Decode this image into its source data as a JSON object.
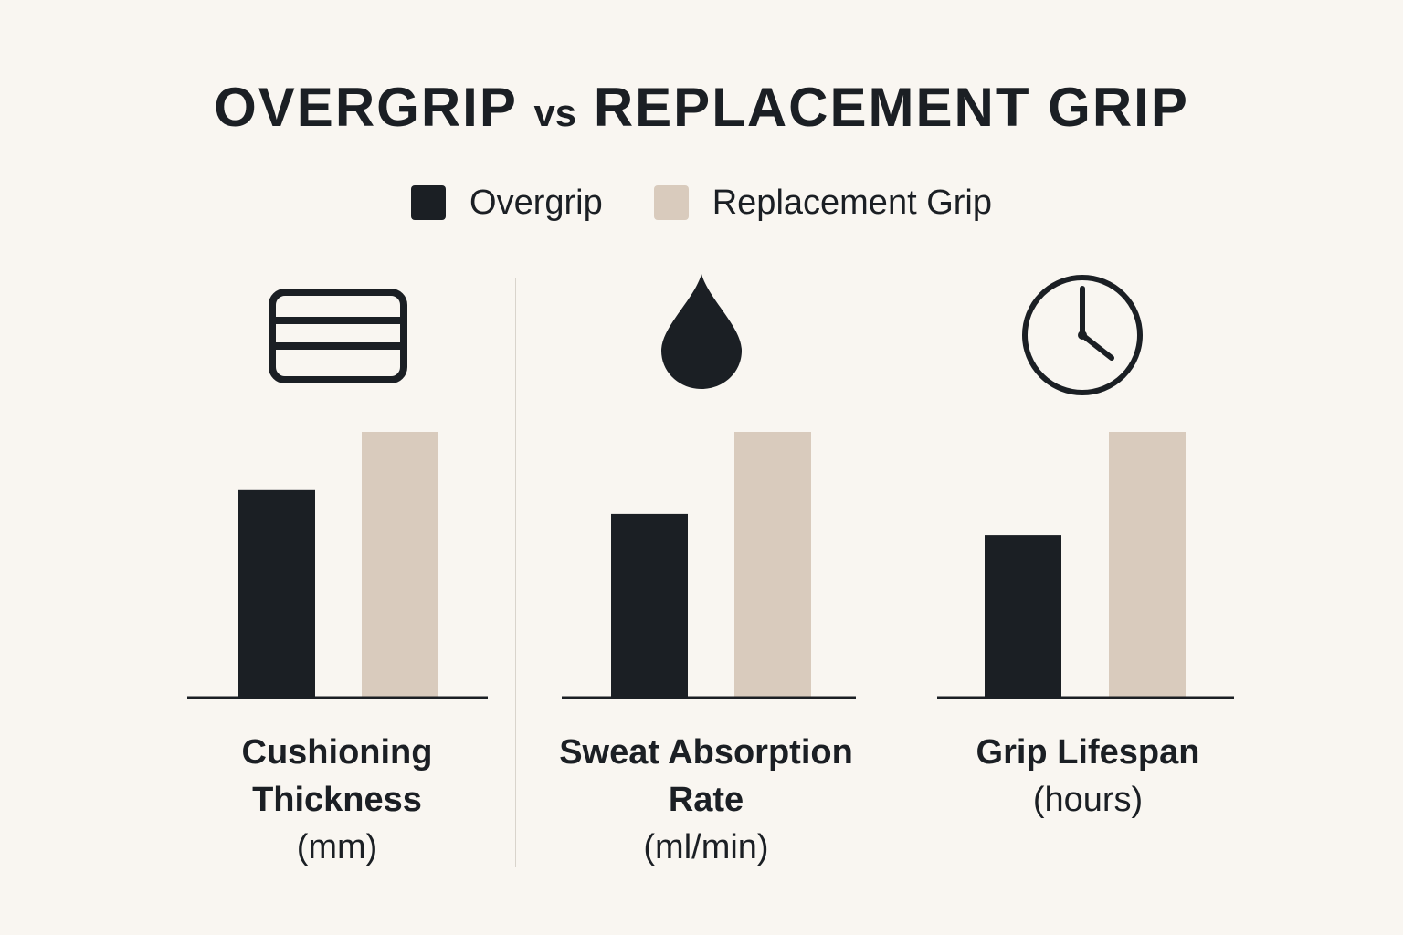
{
  "title_main": "OVERGRIP",
  "title_vs": "vs",
  "title_end": "REPLACEMENT GRIP",
  "colors": {
    "overgrip": "#1b1f24",
    "replacement": "#d9cbbd",
    "background": "#f9f6f1"
  },
  "chart_data": {
    "type": "bar",
    "title": "OVERGRIP vs REPLACEMENT GRIP",
    "legend_position": "top-center",
    "grid": false,
    "legend": [
      "Overgrip",
      "Replacement Grip"
    ],
    "panels": [
      {
        "label_main": "Cushioning Thickness",
        "label_unit": "(mm)",
        "icon": "layers-icon",
        "series": [
          {
            "name": "Overgrip",
            "value": 0.78
          },
          {
            "name": "Replacement Grip",
            "value": 1.0
          }
        ]
      },
      {
        "label_main": "Sweat Absorption Rate",
        "label_unit": "(ml/min)",
        "icon": "water-drop-icon",
        "series": [
          {
            "name": "Overgrip",
            "value": 0.69
          },
          {
            "name": "Replacement Grip",
            "value": 1.0
          }
        ]
      },
      {
        "label_main": "Grip Lifespan",
        "label_unit": "(hours)",
        "icon": "clock-icon",
        "series": [
          {
            "name": "Overgrip",
            "value": 0.61
          },
          {
            "name": "Replacement Grip",
            "value": 1.0
          }
        ]
      }
    ]
  }
}
